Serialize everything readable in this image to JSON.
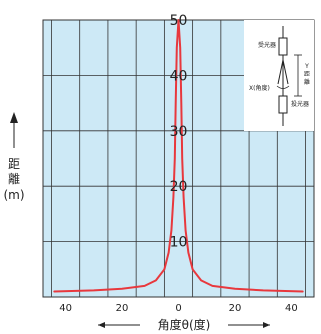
{
  "chart_data": {
    "type": "line",
    "xlabel": "角度θ(度)",
    "ylabel_chars": [
      "距",
      "離"
    ],
    "ylabel_unit": "(m)",
    "x_tick_labels": [
      "40",
      "20",
      "0",
      "20",
      "40"
    ],
    "x_tick_values": [
      -40,
      -20,
      0,
      20,
      40
    ],
    "y_tick_labels": [
      "10",
      "20",
      "30",
      "40",
      "50"
    ],
    "y_tick_values": [
      10,
      20,
      30,
      40,
      50
    ],
    "xlim": [
      -48,
      48
    ],
    "ylim": [
      0,
      50
    ],
    "grid": true,
    "colors": {
      "line": "#e8383d",
      "plot_bg": "#cde9f6",
      "grid": "#333333"
    },
    "series": [
      {
        "values_x": [
          -44,
          -30,
          -20,
          -12,
          -8,
          -5,
          -3.5,
          -2.5,
          -1.8,
          -1.3,
          -1,
          -0.6,
          0,
          0.6,
          1,
          1.3,
          1.8,
          2.5,
          3.5,
          5,
          8,
          12,
          20,
          30,
          44
        ],
        "values_y": [
          1,
          1.2,
          1.5,
          2,
          3,
          5,
          8,
          12,
          18,
          25,
          35,
          45,
          50,
          45,
          35,
          25,
          18,
          12,
          8,
          5,
          3,
          2,
          1.5,
          1.2,
          1
        ]
      }
    ]
  },
  "inset": {
    "receiver_label": "受光器",
    "emitter_label": "投光器",
    "angle_label": "X(角度)",
    "distance_label_y": "Y",
    "distance_label_word": "距離"
  }
}
